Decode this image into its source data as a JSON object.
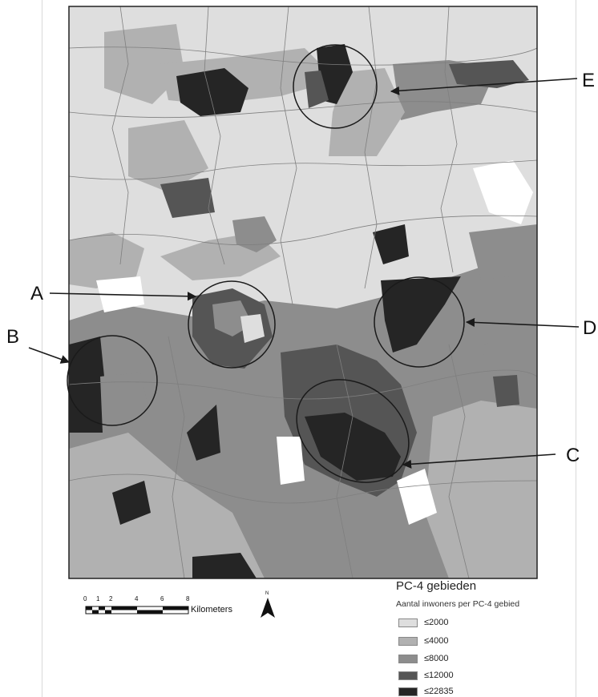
{
  "map": {
    "callouts": [
      "A",
      "B",
      "C",
      "D",
      "E"
    ]
  },
  "legend": {
    "title": "PC-4 gebieden",
    "subtitle": "Aantal inwoners per PC-4 gebied",
    "classes": [
      {
        "label": "≤2000",
        "color": "#dedede"
      },
      {
        "label": "≤4000",
        "color": "#b1b1b1"
      },
      {
        "label": "≤8000",
        "color": "#8d8d8d"
      },
      {
        "label": "≤12000",
        "color": "#555555"
      },
      {
        "label": "≤22835",
        "color": "#252525"
      }
    ]
  },
  "scalebar": {
    "ticks": [
      "0",
      "1",
      "2",
      "4",
      "6",
      "8"
    ],
    "unit": "Kilometers"
  },
  "north": {
    "letter": "N"
  }
}
